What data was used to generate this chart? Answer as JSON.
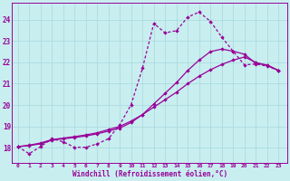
{
  "bg_color": "#c8eef0",
  "line_color": "#990099",
  "grid_color": "#a8d8dc",
  "xlabel": "Windchill (Refroidissement éolien,°C)",
  "x_ticks": [
    0,
    1,
    2,
    3,
    4,
    5,
    6,
    7,
    8,
    9,
    10,
    11,
    12,
    13,
    14,
    15,
    16,
    17,
    18,
    19,
    20,
    21,
    22,
    23
  ],
  "y_ticks": [
    18,
    19,
    20,
    21,
    22,
    23,
    24
  ],
  "ylim": [
    17.3,
    24.8
  ],
  "xlim": [
    -0.5,
    23.8
  ],
  "curve1_x": [
    0,
    1,
    2,
    3,
    4,
    5,
    6,
    7,
    8,
    9,
    10,
    11,
    12,
    13,
    14,
    15,
    16,
    17,
    18,
    19,
    20,
    21,
    22,
    23
  ],
  "curve1_y": [
    18.05,
    17.72,
    18.05,
    18.42,
    18.28,
    18.02,
    18.02,
    18.18,
    18.42,
    19.08,
    20.02,
    21.72,
    23.82,
    23.38,
    23.48,
    24.12,
    24.35,
    23.92,
    23.18,
    22.52,
    21.88,
    21.92,
    21.82,
    21.62
  ],
  "curve2_x": [
    0,
    1,
    2,
    3,
    4,
    5,
    6,
    7,
    8,
    9,
    10,
    11,
    12,
    13,
    14,
    15,
    16,
    17,
    18,
    19,
    20,
    21,
    22,
    23
  ],
  "curve2_y": [
    18.05,
    18.12,
    18.22,
    18.38,
    18.45,
    18.52,
    18.6,
    18.7,
    18.85,
    19.0,
    19.25,
    19.55,
    19.9,
    20.25,
    20.6,
    21.0,
    21.35,
    21.65,
    21.9,
    22.1,
    22.25,
    22.0,
    21.85,
    21.62
  ],
  "curve3_x": [
    0,
    1,
    2,
    3,
    4,
    5,
    6,
    7,
    8,
    9,
    10,
    11,
    12,
    13,
    14,
    15,
    16,
    17,
    18,
    19,
    20,
    21,
    22,
    23
  ],
  "curve3_y": [
    18.05,
    18.1,
    18.18,
    18.35,
    18.42,
    18.48,
    18.55,
    18.65,
    18.78,
    18.92,
    19.18,
    19.55,
    20.05,
    20.55,
    21.05,
    21.62,
    22.1,
    22.5,
    22.62,
    22.52,
    22.38,
    21.95,
    21.88,
    21.62
  ]
}
